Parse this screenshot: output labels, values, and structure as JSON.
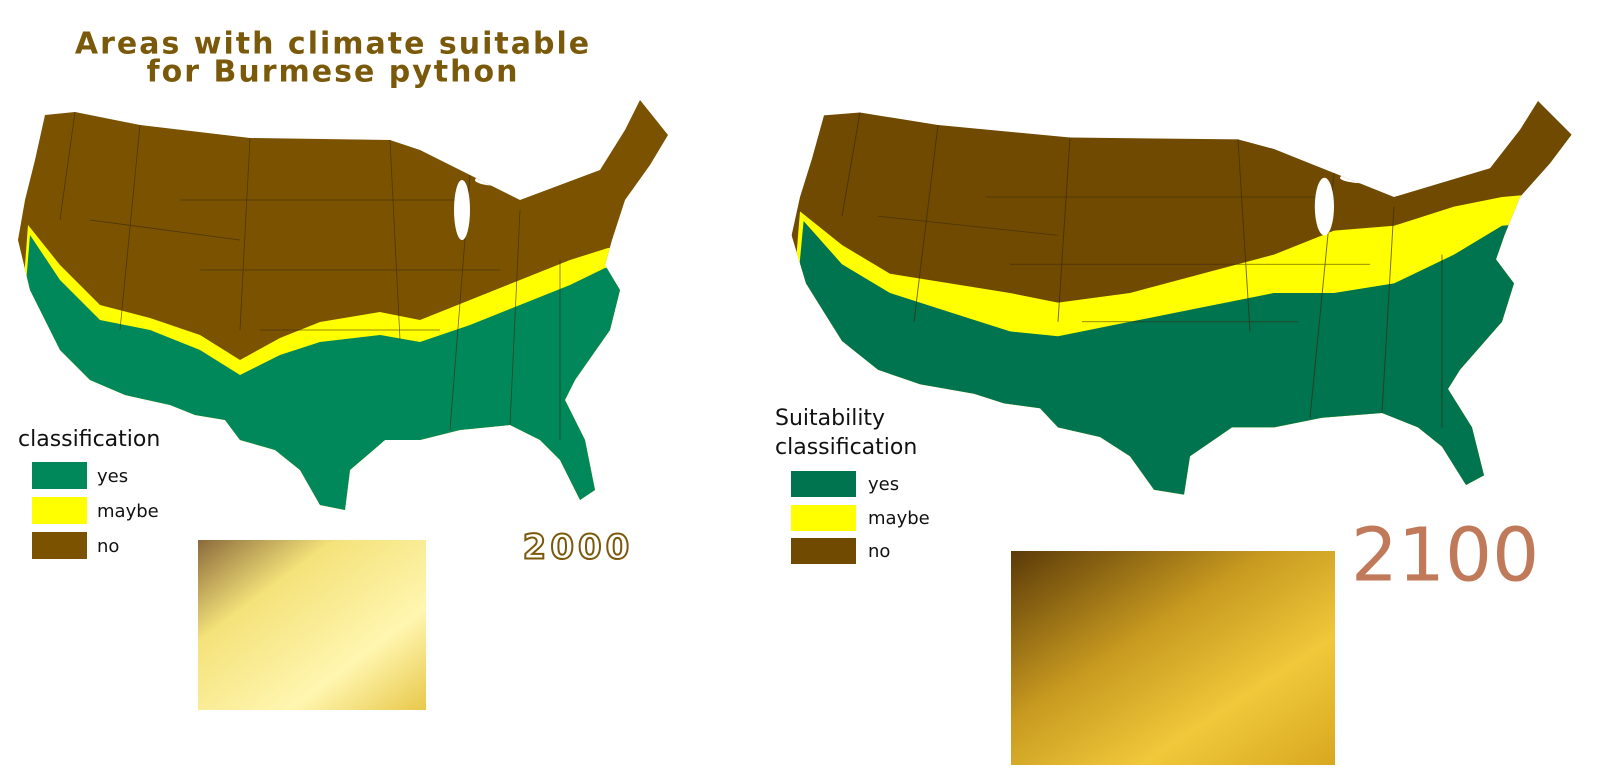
{
  "title": [
    "Areas with climate suitable",
    "for Burmese python"
  ],
  "maps": [
    {
      "legend_title": [
        "classification"
      ],
      "year": "2000",
      "legend": [
        {
          "label": "yes",
          "color": "#00875a"
        },
        {
          "label": "maybe",
          "color": "#ffff00"
        },
        {
          "label": "no",
          "color": "#7a5200"
        }
      ]
    },
    {
      "legend_title": [
        "Suitability",
        "classification"
      ],
      "year": "2100",
      "legend": [
        {
          "label": "yes",
          "color": "#00734f"
        },
        {
          "label": "maybe",
          "color": "#ffff00"
        },
        {
          "label": "no",
          "color": "#704a00"
        }
      ]
    }
  ]
}
